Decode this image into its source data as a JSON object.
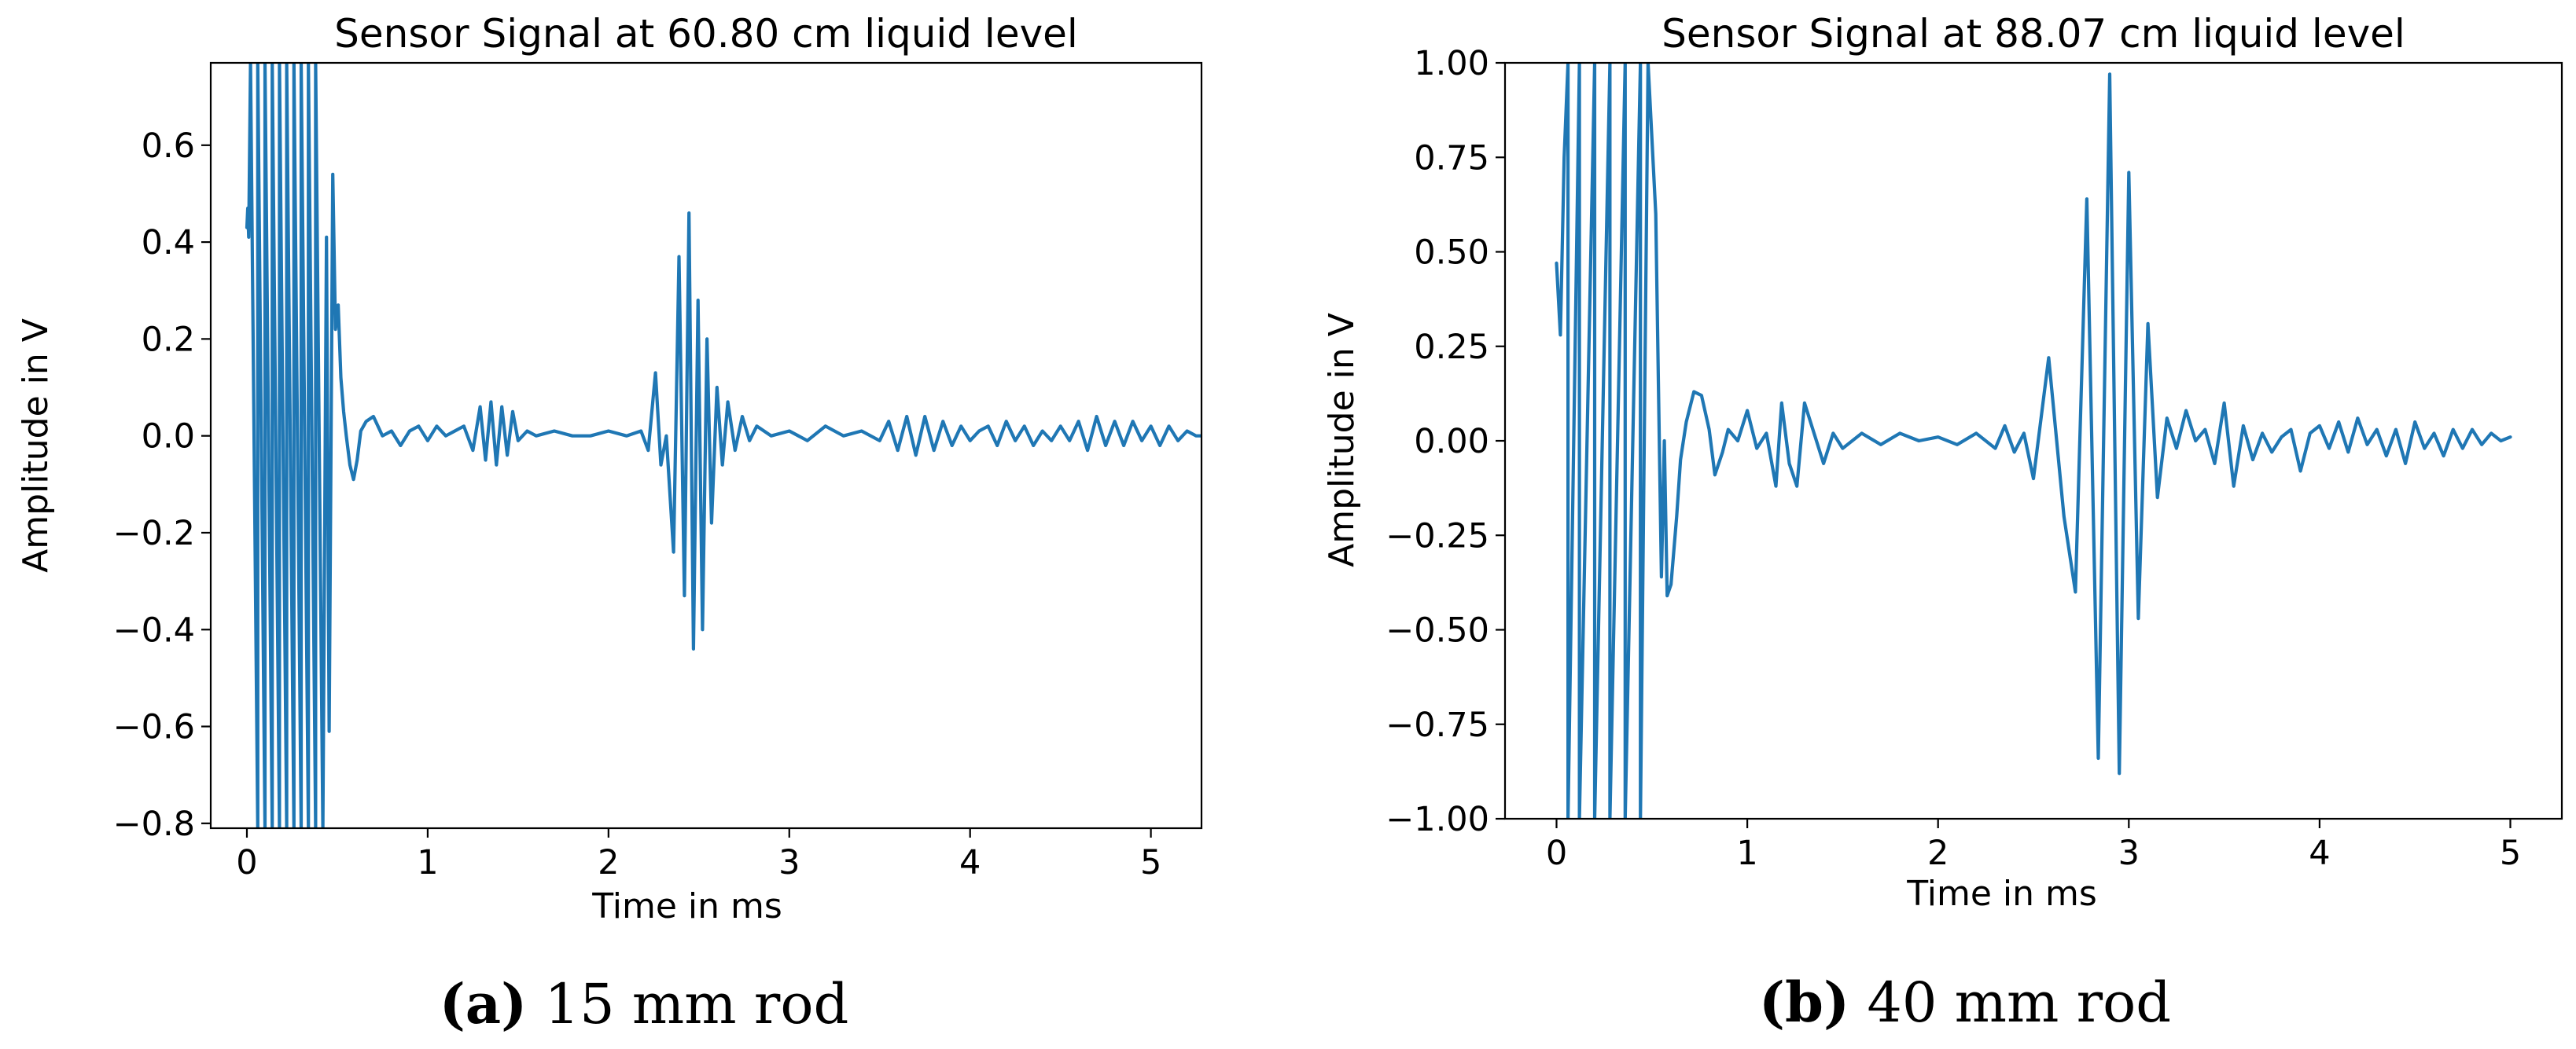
{
  "chart_data": [
    {
      "type": "line",
      "title": "Sensor Signal at 60.80 cm liquid level",
      "xlabel": "Time in ms",
      "ylabel": "Amplitude in V",
      "xlim": [
        -0.2,
        5.28
      ],
      "ylim": [
        -0.81,
        0.77
      ],
      "xticks": [
        0,
        1,
        2,
        3,
        4,
        5
      ],
      "xtick_labels": [
        "0",
        "1",
        "2",
        "3",
        "4",
        "5"
      ],
      "yticks": [
        -0.8,
        -0.6,
        -0.4,
        -0.2,
        0.0,
        0.2,
        0.4,
        0.6
      ],
      "ytick_labels": [
        "−0.8",
        "−0.6",
        "−0.4",
        "−0.2",
        "0.0",
        "0.2",
        "0.4",
        "0.6"
      ],
      "caption_letter": "(a)",
      "caption_text": " 15 mm rod",
      "series": [
        {
          "name": "Sensor signal",
          "color": "#1f77b4",
          "x": [
            0,
            0.005,
            0.01,
            0.02,
            0.06,
            0.06,
            0.1,
            0.1,
            0.14,
            0.14,
            0.18,
            0.18,
            0.22,
            0.22,
            0.26,
            0.26,
            0.3,
            0.3,
            0.34,
            0.34,
            0.38,
            0.38,
            0.42,
            0.42,
            0.44,
            0.455,
            0.475,
            0.49,
            0.505,
            0.52,
            0.535,
            0.55,
            0.57,
            0.59,
            0.61,
            0.63,
            0.66,
            0.7,
            0.75,
            0.8,
            0.85,
            0.9,
            0.95,
            1.0,
            1.05,
            1.1,
            1.15,
            1.2,
            1.25,
            1.29,
            1.32,
            1.35,
            1.38,
            1.41,
            1.44,
            1.47,
            1.5,
            1.55,
            1.6,
            1.7,
            1.8,
            1.9,
            2.0,
            2.1,
            2.18,
            2.22,
            2.26,
            2.29,
            2.32,
            2.36,
            2.39,
            2.42,
            2.445,
            2.47,
            2.495,
            2.52,
            2.545,
            2.57,
            2.6,
            2.63,
            2.66,
            2.7,
            2.74,
            2.78,
            2.82,
            2.9,
            3.0,
            3.1,
            3.2,
            3.3,
            3.4,
            3.5,
            3.55,
            3.6,
            3.65,
            3.7,
            3.75,
            3.8,
            3.85,
            3.9,
            3.95,
            4.0,
            4.05,
            4.1,
            4.15,
            4.2,
            4.25,
            4.3,
            4.35,
            4.4,
            4.45,
            4.5,
            4.55,
            4.6,
            4.65,
            4.7,
            4.75,
            4.8,
            4.85,
            4.9,
            4.95,
            5.0,
            5.05,
            5.1,
            5.15,
            5.2,
            5.25,
            5.28
          ],
          "values": [
            0.43,
            0.47,
            0.41,
            0.77,
            -0.81,
            0.77,
            -0.81,
            0.77,
            -0.81,
            0.77,
            -0.81,
            0.77,
            -0.81,
            0.77,
            -0.81,
            0.77,
            -0.81,
            0.77,
            -0.81,
            0.77,
            -0.81,
            0.77,
            -0.81,
            -0.81,
            0.41,
            -0.61,
            0.54,
            0.22,
            0.27,
            0.12,
            0.05,
            0.0,
            -0.06,
            -0.09,
            -0.05,
            0.01,
            0.03,
            0.04,
            0.0,
            0.01,
            -0.02,
            0.01,
            0.02,
            -0.01,
            0.02,
            0.0,
            0.01,
            0.02,
            -0.03,
            0.06,
            -0.05,
            0.07,
            -0.06,
            0.06,
            -0.04,
            0.05,
            -0.01,
            0.01,
            0.0,
            0.01,
            0.0,
            0.0,
            0.01,
            0.0,
            0.01,
            -0.03,
            0.13,
            -0.06,
            0.0,
            -0.24,
            0.37,
            -0.33,
            0.46,
            -0.44,
            0.28,
            -0.4,
            0.2,
            -0.18,
            0.1,
            -0.06,
            0.07,
            -0.03,
            0.04,
            -0.01,
            0.02,
            0.0,
            0.01,
            -0.01,
            0.02,
            0.0,
            0.01,
            -0.01,
            0.03,
            -0.03,
            0.04,
            -0.04,
            0.04,
            -0.03,
            0.03,
            -0.02,
            0.02,
            -0.01,
            0.01,
            0.02,
            -0.02,
            0.03,
            -0.01,
            0.02,
            -0.02,
            0.01,
            -0.01,
            0.02,
            -0.01,
            0.03,
            -0.03,
            0.04,
            -0.02,
            0.03,
            -0.02,
            0.03,
            -0.01,
            0.02,
            -0.02,
            0.02,
            -0.01,
            0.01,
            0.0,
            0.0
          ]
        }
      ]
    },
    {
      "type": "line",
      "title": "Sensor Signal at 88.07 cm liquid level",
      "xlabel": "Time in ms",
      "ylabel": "Amplitude in V",
      "xlim": [
        -0.27,
        5.27
      ],
      "ylim": [
        -1.0,
        1.0
      ],
      "xticks": [
        0,
        1,
        2,
        3,
        4,
        5
      ],
      "xtick_labels": [
        "0",
        "1",
        "2",
        "3",
        "4",
        "5"
      ],
      "yticks": [
        -1.0,
        -0.75,
        -0.5,
        -0.25,
        0.0,
        0.25,
        0.5,
        0.75,
        1.0
      ],
      "ytick_labels": [
        "−1.00",
        "−0.75",
        "−0.50",
        "−0.25",
        "0.00",
        "0.25",
        "0.50",
        "0.75",
        "1.00"
      ],
      "caption_letter": "(b)",
      "caption_text": " 40 mm rod",
      "series": [
        {
          "name": "Sensor signal",
          "color": "#1f77b4",
          "x": [
            0,
            0.02,
            0.04,
            0.06,
            0.06,
            0.12,
            0.12,
            0.2,
            0.2,
            0.28,
            0.28,
            0.36,
            0.36,
            0.44,
            0.44,
            0.48,
            0.52,
            0.55,
            0.565,
            0.58,
            0.6,
            0.63,
            0.65,
            0.68,
            0.72,
            0.76,
            0.8,
            0.83,
            0.87,
            0.9,
            0.95,
            1.0,
            1.05,
            1.1,
            1.15,
            1.18,
            1.22,
            1.26,
            1.3,
            1.35,
            1.4,
            1.45,
            1.5,
            1.6,
            1.7,
            1.8,
            1.9,
            2.0,
            2.1,
            2.2,
            2.3,
            2.35,
            2.4,
            2.45,
            2.5,
            2.58,
            2.66,
            2.72,
            2.78,
            2.84,
            2.9,
            2.95,
            3.0,
            3.05,
            3.1,
            3.15,
            3.2,
            3.25,
            3.3,
            3.35,
            3.4,
            3.45,
            3.5,
            3.55,
            3.6,
            3.65,
            3.7,
            3.75,
            3.8,
            3.85,
            3.9,
            3.95,
            4.0,
            4.05,
            4.1,
            4.15,
            4.2,
            4.25,
            4.3,
            4.35,
            4.4,
            4.45,
            4.5,
            4.55,
            4.6,
            4.65,
            4.7,
            4.75,
            4.8,
            4.85,
            4.9,
            4.95,
            5.0
          ],
          "values": [
            0.47,
            0.28,
            0.75,
            1.0,
            -1.0,
            1.0,
            -1.0,
            1.0,
            -1.0,
            1.0,
            -1.0,
            1.0,
            -1.0,
            1.0,
            -1.0,
            1.0,
            0.6,
            -0.36,
            0.0,
            -0.41,
            -0.38,
            -0.2,
            -0.05,
            0.05,
            0.13,
            0.12,
            0.03,
            -0.09,
            -0.03,
            0.03,
            0.0,
            0.08,
            -0.02,
            0.02,
            -0.12,
            0.1,
            -0.06,
            -0.12,
            0.1,
            0.02,
            -0.06,
            0.02,
            -0.02,
            0.02,
            -0.01,
            0.02,
            0.0,
            0.01,
            -0.01,
            0.02,
            -0.02,
            0.04,
            -0.03,
            0.02,
            -0.1,
            0.22,
            -0.2,
            -0.4,
            0.64,
            -0.84,
            0.97,
            -0.88,
            0.71,
            -0.47,
            0.31,
            -0.15,
            0.06,
            -0.02,
            0.08,
            0.0,
            0.03,
            -0.06,
            0.1,
            -0.12,
            0.04,
            -0.05,
            0.02,
            -0.03,
            0.01,
            0.03,
            -0.08,
            0.02,
            0.04,
            -0.02,
            0.05,
            -0.03,
            0.06,
            -0.01,
            0.03,
            -0.04,
            0.03,
            -0.06,
            0.05,
            -0.02,
            0.02,
            -0.04,
            0.03,
            -0.02,
            0.03,
            -0.01,
            0.02,
            0.0,
            0.01
          ]
        }
      ]
    }
  ]
}
